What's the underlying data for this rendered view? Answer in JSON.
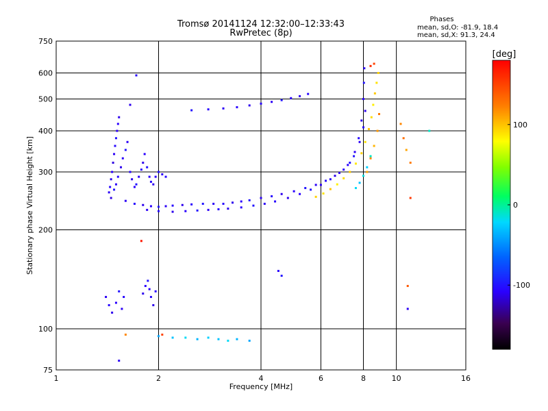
{
  "chart_data": {
    "type": "scatter",
    "title": "Tromsø 20141124 12:32:00–12:33:43",
    "subtitle": "RwPretec (8p)",
    "xlabel": "Frequency [MHz]",
    "ylabel": "Stationary phase Virtual Height [km]",
    "x_scale": "log",
    "y_scale": "log",
    "xlim": [
      1,
      16
    ],
    "ylim": [
      75,
      750
    ],
    "x_ticks": [
      1,
      2,
      4,
      6,
      8,
      10,
      16
    ],
    "y_ticks": [
      75,
      100,
      200,
      300,
      400,
      500,
      600,
      750
    ],
    "grid": true,
    "phase_stats": {
      "heading": "Phases",
      "line_o": "mean, sd,O: -81.9, 18.4",
      "line_x": "mean, sd,X:  91.3, 24.4"
    },
    "colorbar": {
      "unit": "[deg]",
      "range": [
        -180,
        180
      ],
      "ticks": [
        100,
        0,
        -100
      ]
    },
    "series": [
      {
        "mode": "O",
        "points": [
          [
            1.43,
            260,
            -110
          ],
          [
            1.44,
            270,
            -105
          ],
          [
            1.45,
            285,
            -112
          ],
          [
            1.46,
            300,
            -108
          ],
          [
            1.47,
            320,
            -115
          ],
          [
            1.48,
            340,
            -110
          ],
          [
            1.49,
            360,
            -105
          ],
          [
            1.5,
            380,
            -100
          ],
          [
            1.51,
            400,
            -110
          ],
          [
            1.52,
            420,
            -108
          ],
          [
            1.53,
            440,
            -112
          ],
          [
            1.45,
            250,
            -115
          ],
          [
            1.48,
            265,
            -100
          ],
          [
            1.5,
            275,
            -110
          ],
          [
            1.52,
            290,
            -105
          ],
          [
            1.55,
            310,
            -112
          ],
          [
            1.57,
            330,
            -108
          ],
          [
            1.6,
            350,
            -100
          ],
          [
            1.62,
            370,
            -110
          ],
          [
            1.65,
            300,
            -105
          ],
          [
            1.67,
            285,
            -112
          ],
          [
            1.7,
            270,
            -108
          ],
          [
            1.72,
            275,
            -100
          ],
          [
            1.75,
            290,
            -110
          ],
          [
            1.78,
            305,
            -105
          ],
          [
            1.8,
            320,
            -112
          ],
          [
            1.82,
            340,
            -108
          ],
          [
            1.85,
            310,
            -100
          ],
          [
            1.88,
            290,
            -110
          ],
          [
            1.9,
            280,
            -105
          ],
          [
            1.93,
            275,
            -112
          ],
          [
            1.96,
            290,
            -108
          ],
          [
            2.0,
            300,
            -100
          ],
          [
            2.05,
            295,
            -110
          ],
          [
            2.1,
            290,
            -105
          ],
          [
            1.6,
            245,
            -110
          ],
          [
            1.7,
            240,
            -105
          ],
          [
            1.8,
            238,
            -112
          ],
          [
            1.9,
            236,
            -108
          ],
          [
            2.0,
            235,
            -100
          ],
          [
            2.1,
            236,
            -110
          ],
          [
            2.2,
            237,
            -105
          ],
          [
            2.35,
            238,
            -112
          ],
          [
            2.5,
            239,
            -108
          ],
          [
            2.7,
            240,
            -100
          ],
          [
            2.9,
            240,
            -110
          ],
          [
            3.1,
            240,
            -105
          ],
          [
            3.3,
            242,
            -112
          ],
          [
            3.5,
            244,
            -108
          ],
          [
            3.7,
            246,
            -100
          ],
          [
            4.0,
            250,
            -110
          ],
          [
            4.3,
            253,
            -105
          ],
          [
            4.6,
            257,
            -112
          ],
          [
            5.0,
            262,
            -108
          ],
          [
            5.4,
            268,
            -100
          ],
          [
            5.8,
            274,
            -110
          ],
          [
            6.2,
            282,
            -105
          ],
          [
            6.6,
            292,
            -112
          ],
          [
            7.0,
            305,
            -108
          ],
          [
            7.3,
            320,
            -100
          ],
          [
            7.55,
            345,
            -110
          ],
          [
            7.75,
            380,
            -105
          ],
          [
            7.9,
            430,
            -112
          ],
          [
            8.0,
            500,
            -108
          ],
          [
            8.03,
            560,
            -100
          ],
          [
            8.05,
            620,
            -110
          ],
          [
            1.85,
            230,
            -110
          ],
          [
            2.0,
            228,
            -105
          ],
          [
            2.2,
            227,
            -112
          ],
          [
            2.4,
            228,
            -108
          ],
          [
            2.6,
            229,
            -100
          ],
          [
            2.8,
            230,
            -110
          ],
          [
            3.0,
            231,
            -105
          ],
          [
            3.2,
            232,
            -112
          ],
          [
            3.5,
            234,
            -108
          ],
          [
            3.8,
            237,
            -100
          ],
          [
            4.1,
            240,
            -110
          ],
          [
            4.4,
            244,
            -105
          ],
          [
            4.8,
            250,
            -112
          ],
          [
            5.2,
            257,
            -108
          ],
          [
            5.6,
            265,
            -100
          ],
          [
            6.0,
            274,
            -110
          ],
          [
            6.4,
            285,
            -105
          ],
          [
            6.8,
            298,
            -112
          ],
          [
            7.2,
            315,
            -108
          ],
          [
            7.5,
            335,
            -100
          ],
          [
            7.8,
            370,
            -110
          ],
          [
            8.0,
            410,
            -105
          ],
          [
            8.1,
            460,
            -112
          ],
          [
            2.5,
            462,
            -100
          ],
          [
            2.8,
            465,
            -105
          ],
          [
            3.1,
            468,
            -110
          ],
          [
            3.4,
            472,
            -108
          ],
          [
            3.7,
            478,
            -112
          ],
          [
            4.0,
            484,
            -105
          ],
          [
            4.3,
            490,
            -110
          ],
          [
            4.6,
            496,
            -100
          ],
          [
            4.9,
            503,
            -108
          ],
          [
            5.2,
            510,
            -112
          ],
          [
            5.5,
            518,
            -105
          ],
          [
            1.4,
            125,
            -110
          ],
          [
            1.43,
            118,
            -105
          ],
          [
            1.46,
            112,
            -112
          ],
          [
            1.5,
            120,
            -108
          ],
          [
            1.53,
            130,
            -100
          ],
          [
            1.56,
            115,
            -110
          ],
          [
            1.58,
            125,
            -105
          ],
          [
            1.8,
            128,
            -112
          ],
          [
            1.83,
            135,
            -108
          ],
          [
            1.86,
            140,
            -100
          ],
          [
            1.88,
            132,
            -110
          ],
          [
            1.9,
            125,
            -105
          ],
          [
            1.93,
            118,
            -112
          ],
          [
            1.96,
            130,
            -108
          ],
          [
            1.53,
            80,
            -110
          ],
          [
            1.72,
            590,
            -105
          ],
          [
            1.65,
            480,
            -112
          ],
          [
            4.5,
            150,
            -108
          ],
          [
            4.6,
            145,
            -100
          ],
          [
            10.8,
            115,
            -110
          ]
        ]
      },
      {
        "mode": "X",
        "points": [
          [
            5.8,
            252,
            95
          ],
          [
            6.1,
            258,
            90
          ],
          [
            6.4,
            266,
            100
          ],
          [
            6.7,
            275,
            85
          ],
          [
            7.0,
            287,
            92
          ],
          [
            7.3,
            300,
            98
          ],
          [
            7.6,
            318,
            88
          ],
          [
            7.9,
            342,
            95
          ],
          [
            8.1,
            370,
            90
          ],
          [
            8.3,
            405,
            100
          ],
          [
            8.45,
            440,
            92
          ],
          [
            8.55,
            480,
            85
          ],
          [
            8.65,
            520,
            98
          ],
          [
            8.75,
            560,
            90
          ],
          [
            8.85,
            600,
            95
          ],
          [
            8.2,
            300,
            110
          ],
          [
            8.4,
            330,
            120
          ],
          [
            8.6,
            360,
            105
          ],
          [
            8.8,
            400,
            115
          ],
          [
            8.9,
            450,
            125
          ],
          [
            7.6,
            268,
            -20
          ],
          [
            7.8,
            278,
            -30
          ],
          [
            8.0,
            292,
            -15
          ],
          [
            8.2,
            310,
            -25
          ],
          [
            8.4,
            335,
            -10
          ],
          [
            10.3,
            420,
            120
          ],
          [
            10.5,
            380,
            130
          ],
          [
            10.7,
            350,
            110
          ],
          [
            11.0,
            320,
            125
          ],
          [
            12.5,
            400,
            -10
          ],
          [
            1.6,
            96,
            120
          ],
          [
            2.05,
            96,
            150
          ],
          [
            1.78,
            185,
            170
          ],
          [
            8.4,
            630,
            160
          ],
          [
            8.6,
            640,
            150
          ],
          [
            10.8,
            135,
            140
          ],
          [
            11.0,
            250,
            155
          ]
        ]
      },
      {
        "mode": "O-low",
        "points": [
          [
            2.0,
            95,
            -40
          ],
          [
            2.2,
            94,
            -30
          ],
          [
            2.4,
            94,
            -20
          ],
          [
            2.6,
            93,
            -35
          ],
          [
            2.8,
            94,
            -25
          ],
          [
            3.0,
            93,
            -30
          ],
          [
            3.2,
            92,
            -20
          ],
          [
            3.4,
            93,
            -35
          ],
          [
            3.7,
            92,
            -40
          ]
        ]
      }
    ]
  }
}
